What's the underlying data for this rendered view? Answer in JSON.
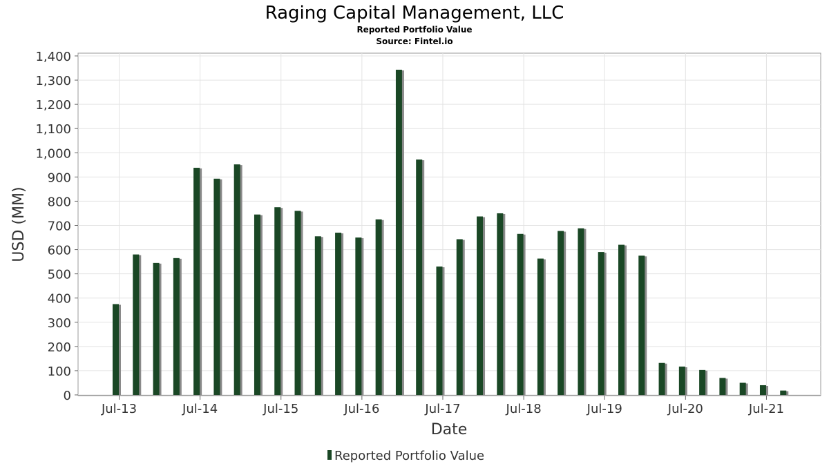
{
  "chart_data": {
    "type": "bar",
    "title": "Raging Capital Management, LLC",
    "subtitle": "Reported Portfolio Value",
    "source": "Source: Fintel.io",
    "xlabel": "Date",
    "ylabel": "USD (MM)",
    "ylim": [
      0,
      1400
    ],
    "yticks": [
      "0",
      "100",
      "200",
      "300",
      "400",
      "500",
      "600",
      "700",
      "800",
      "900",
      "1,000",
      "1,100",
      "1,200",
      "1,300",
      "1,400"
    ],
    "xticks": [
      "Jul-13",
      "Jul-14",
      "Jul-15",
      "Jul-16",
      "Jul-17",
      "Jul-18",
      "Jul-19",
      "Jul-20",
      "Jul-21"
    ],
    "grid": true,
    "legend_position": "bottom",
    "series": [
      {
        "name": "Reported Portfolio Value",
        "color": "#1a4725",
        "values": [
          375,
          580,
          545,
          565,
          938,
          893,
          952,
          745,
          775,
          760,
          655,
          670,
          650,
          725,
          1343,
          972,
          530,
          643,
          737,
          750,
          665,
          563,
          677,
          688,
          590,
          620,
          575,
          132,
          117,
          103,
          70,
          50,
          40,
          18
        ]
      }
    ],
    "x": [
      "Q3-13",
      "Q4-13",
      "Q1-14",
      "Q2-14",
      "Q3-14",
      "Q4-14",
      "Q1-15",
      "Q2-15",
      "Q3-15",
      "Q4-15",
      "Q1-16",
      "Q2-16",
      "Q3-16",
      "Q4-16",
      "Q1-17",
      "Q2-17",
      "Q3-17",
      "Q4-17",
      "Q1-18",
      "Q2-18",
      "Q3-18",
      "Q4-18",
      "Q1-19",
      "Q2-19",
      "Q3-19",
      "Q4-19",
      "Q1-20",
      "Q2-20",
      "Q3-20",
      "Q4-20",
      "Q1-21",
      "Q2-21",
      "Q3-21",
      "Q4-21"
    ]
  }
}
